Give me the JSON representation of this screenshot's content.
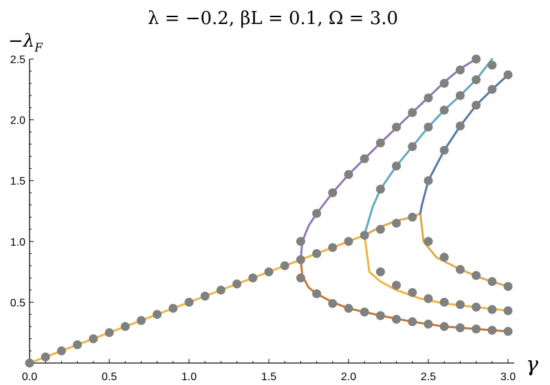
{
  "chart_data": {
    "type": "scatter",
    "title": "λ = −0.2, βL = 0.1, Ω = 3.0",
    "xlabel": "γ",
    "ylabel": "−λ",
    "ylabel_sub": "F",
    "xlim": [
      0.0,
      3.05
    ],
    "ylim": [
      0.0,
      2.5
    ],
    "xticks": [
      "0.0",
      "0.5",
      "1.0",
      "1.5",
      "2.0",
      "2.5",
      "3.0"
    ],
    "yticks": [
      "0.5",
      "1.0",
      "1.5",
      "2.0",
      "2.5"
    ],
    "xtick_values": [
      0.0,
      0.5,
      1.0,
      1.5,
      2.0,
      2.5,
      3.0
    ],
    "ytick_values": [
      0.5,
      1.0,
      1.5,
      2.0,
      2.5
    ],
    "grid": false,
    "curves": [
      {
        "color": "#f0b53a",
        "x": [
          0.0,
          1.7,
          2.1
        ],
        "y": [
          0.0,
          0.85,
          1.05
        ]
      },
      {
        "color": "#f0b53a",
        "x": [
          2.1,
          2.13,
          2.2,
          2.3,
          2.45,
          2.6,
          2.8,
          3.0
        ],
        "y": [
          1.05,
          0.75,
          0.67,
          0.6,
          0.53,
          0.49,
          0.46,
          0.43
        ]
      },
      {
        "color": "#e0a84a",
        "x": [
          2.1,
          2.2,
          2.3,
          2.4,
          2.45
        ],
        "y": [
          1.05,
          1.12,
          1.17,
          1.2,
          1.23
        ]
      },
      {
        "color": "#e0a84a",
        "x": [
          2.45,
          2.47,
          2.55,
          2.7,
          2.85,
          3.0
        ],
        "y": [
          1.23,
          1.0,
          0.87,
          0.77,
          0.69,
          0.63
        ]
      },
      {
        "color": "#c8762e",
        "x": [
          1.7,
          1.71,
          1.75,
          1.8,
          1.9,
          2.0,
          2.2,
          2.4,
          2.6,
          2.8,
          3.0
        ],
        "y": [
          0.85,
          0.72,
          0.62,
          0.57,
          0.5,
          0.45,
          0.39,
          0.34,
          0.3,
          0.28,
          0.26
        ]
      },
      {
        "color": "#8e78b4",
        "x": [
          1.7,
          1.71,
          1.75,
          1.8,
          1.9,
          2.0,
          2.1,
          2.2,
          2.4,
          2.6,
          2.7,
          2.8
        ],
        "y": [
          0.85,
          1.0,
          1.13,
          1.23,
          1.4,
          1.55,
          1.68,
          1.81,
          2.06,
          2.31,
          2.42,
          2.5
        ]
      },
      {
        "color": "#5fa8c3",
        "x": [
          2.1,
          2.11,
          2.15,
          2.2,
          2.3,
          2.4,
          2.5,
          2.6,
          2.7,
          2.8,
          2.9
        ],
        "y": [
          1.05,
          1.1,
          1.28,
          1.43,
          1.62,
          1.78,
          1.94,
          2.08,
          2.2,
          2.33,
          2.5
        ]
      },
      {
        "color": "#5577aa",
        "x": [
          2.45,
          2.46,
          2.5,
          2.6,
          2.7,
          2.8,
          2.9,
          3.0
        ],
        "y": [
          1.23,
          1.3,
          1.5,
          1.75,
          1.95,
          2.12,
          2.25,
          2.37
        ]
      }
    ],
    "points": {
      "x": [
        0.0,
        0.1,
        0.2,
        0.3,
        0.4,
        0.5,
        0.6,
        0.7,
        0.8,
        0.9,
        1.0,
        1.1,
        1.2,
        1.3,
        1.4,
        1.5,
        1.6,
        1.7,
        1.8,
        1.9,
        2.0,
        2.1,
        2.2,
        2.3,
        2.4,
        1.7,
        1.8,
        1.9,
        2.0,
        2.1,
        2.2,
        2.3,
        2.4,
        2.5,
        2.6,
        2.7,
        2.8,
        2.9,
        3.0,
        1.7,
        1.8,
        1.9,
        2.0,
        2.1,
        2.2,
        2.3,
        2.4,
        2.5,
        2.6,
        2.7,
        2.8,
        2.2,
        2.3,
        2.4,
        2.5,
        2.6,
        2.7,
        2.8,
        2.9,
        2.5,
        2.6,
        2.7,
        2.8,
        2.9,
        3.0,
        2.2,
        2.3,
        2.4,
        2.5,
        2.6,
        2.7,
        2.8,
        2.9,
        3.0,
        2.5,
        2.6,
        2.7,
        2.8,
        2.9,
        3.0
      ],
      "y": [
        0.0,
        0.05,
        0.1,
        0.15,
        0.2,
        0.25,
        0.3,
        0.35,
        0.4,
        0.45,
        0.5,
        0.55,
        0.6,
        0.65,
        0.7,
        0.75,
        0.8,
        0.85,
        0.9,
        0.95,
        1.0,
        1.05,
        1.1,
        1.15,
        1.2,
        0.7,
        0.57,
        0.49,
        0.45,
        0.42,
        0.39,
        0.36,
        0.34,
        0.32,
        0.3,
        0.29,
        0.28,
        0.27,
        0.26,
        1.0,
        1.23,
        1.4,
        1.55,
        1.68,
        1.81,
        1.94,
        2.06,
        2.18,
        2.3,
        2.41,
        2.5,
        1.43,
        1.62,
        1.78,
        1.94,
        2.08,
        2.2,
        2.33,
        2.45,
        1.5,
        1.75,
        1.95,
        2.12,
        2.25,
        2.37,
        0.75,
        0.64,
        0.58,
        0.53,
        0.5,
        0.48,
        0.46,
        0.44,
        0.43,
        1.0,
        0.87,
        0.77,
        0.72,
        0.67,
        0.63
      ]
    },
    "point_color": "#808080"
  }
}
